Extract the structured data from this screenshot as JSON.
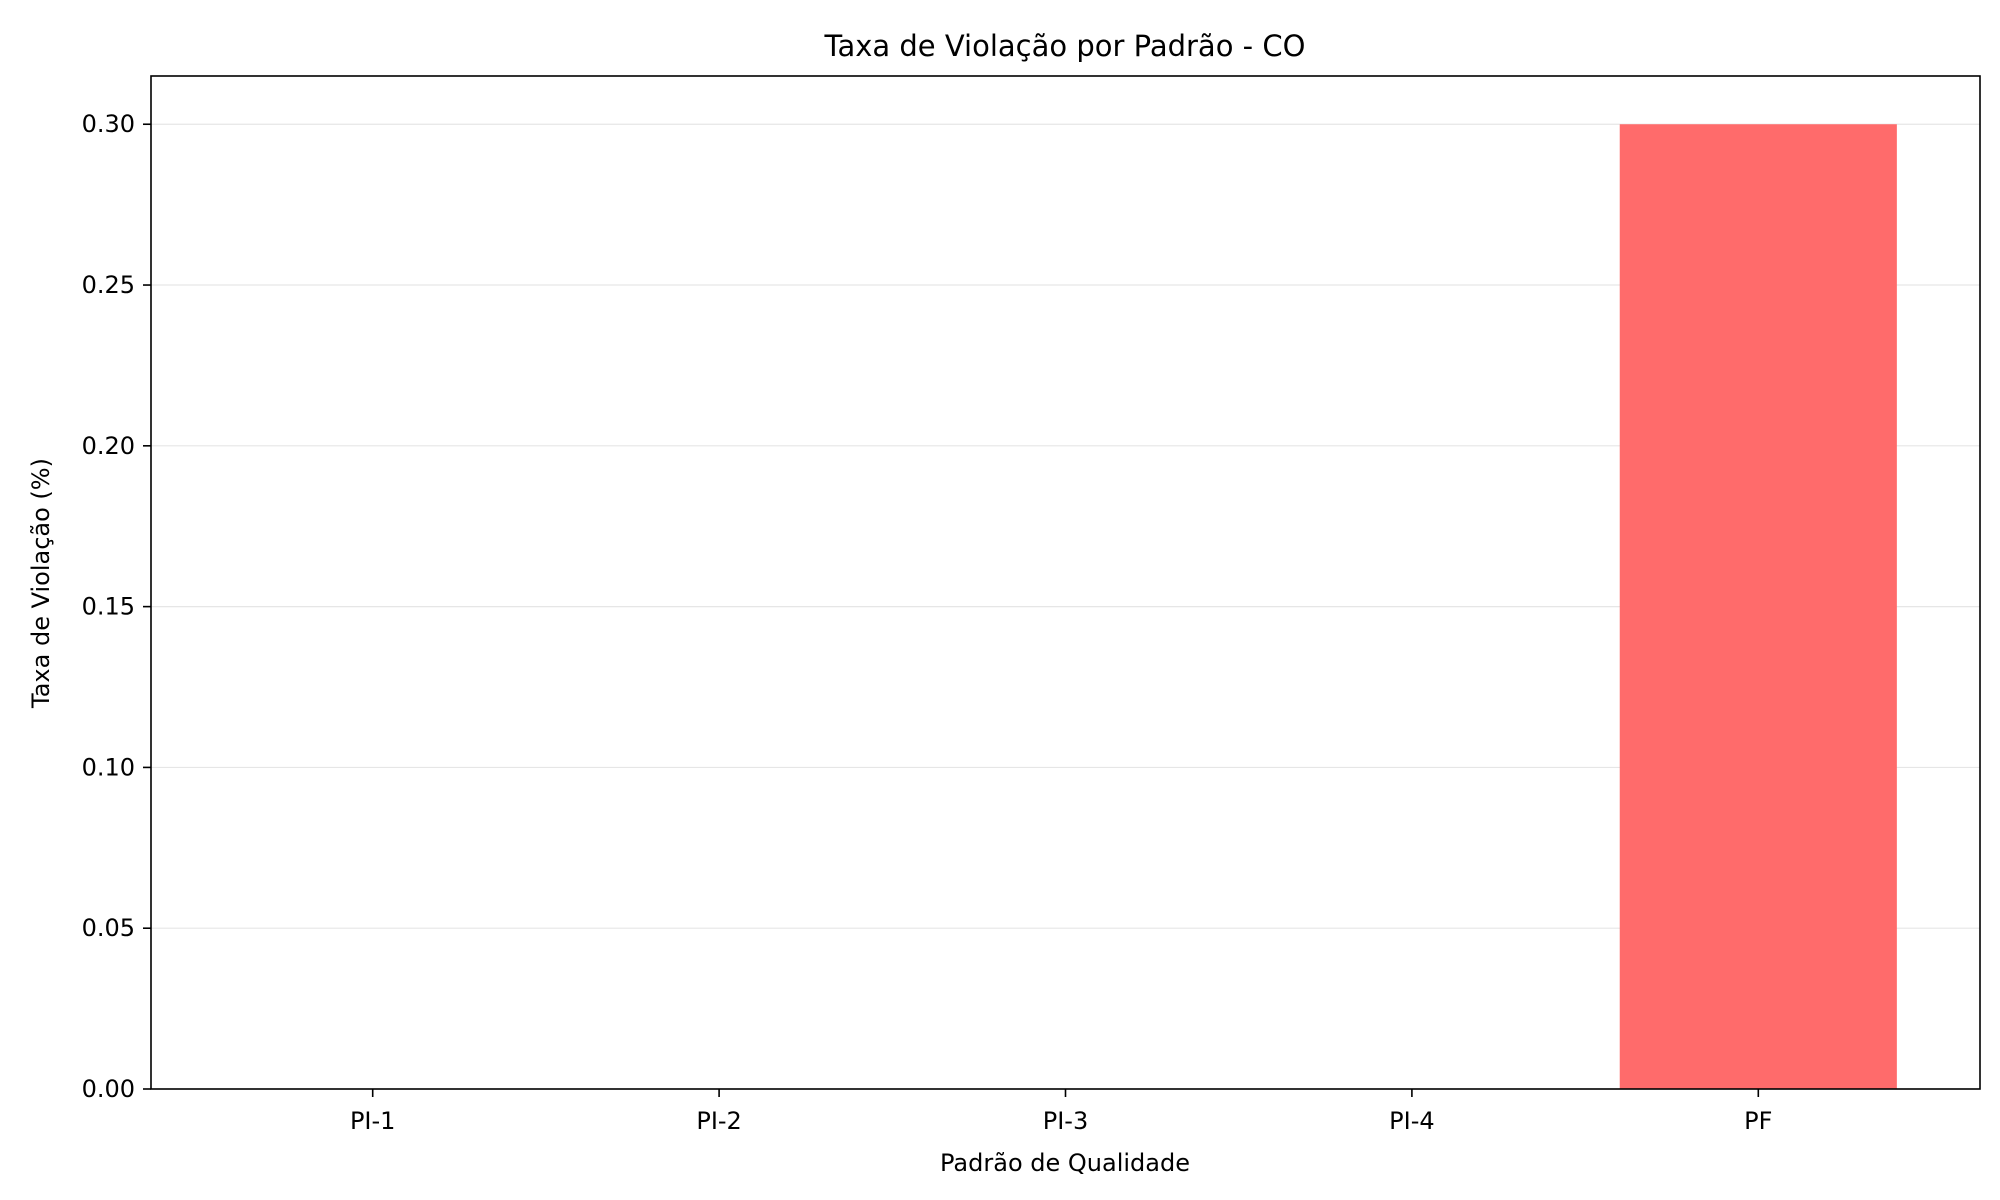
{
  "chart_data": {
    "type": "bar",
    "title": "Taxa de Violação por Padrão - CO",
    "xlabel": "Padrão de Qualidade",
    "ylabel": "Taxa de Violação (%)",
    "categories": [
      "PI-1",
      "PI-2",
      "PI-3",
      "PI-4",
      "PF"
    ],
    "values": [
      0,
      0,
      0,
      0,
      0.3
    ],
    "ylim": [
      0,
      0.315
    ],
    "yticks": [
      0.0,
      0.05,
      0.1,
      0.15,
      0.2,
      0.25,
      0.3
    ],
    "ytick_labels": [
      "0.00",
      "0.05",
      "0.10",
      "0.15",
      "0.20",
      "0.25",
      "0.30"
    ],
    "grid": true,
    "grid_axis": "y",
    "bar_color": "#ff6b6b",
    "grid_color": "#e6e6e6"
  }
}
